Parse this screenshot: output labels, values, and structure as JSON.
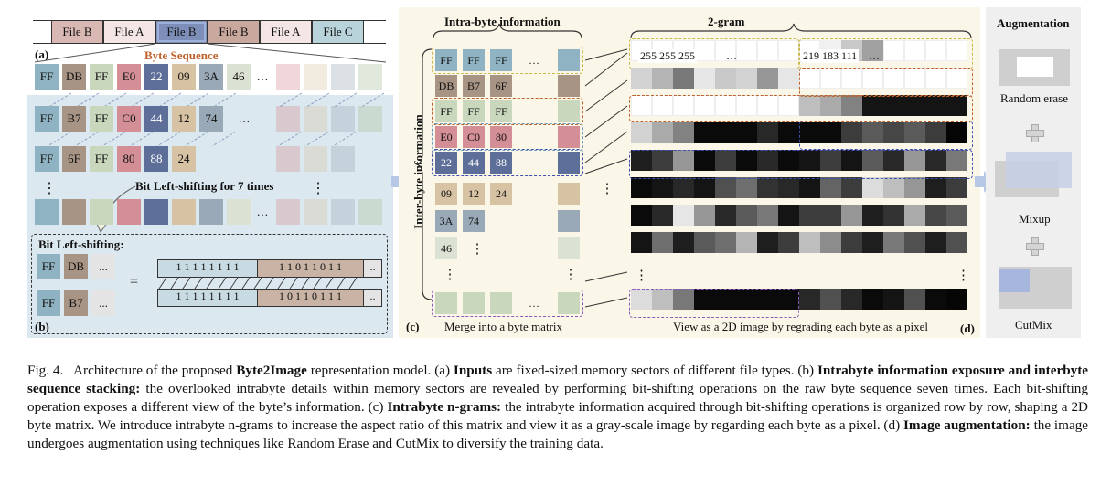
{
  "panel_a": {
    "label": "(a)",
    "files": [
      "File B",
      "File A",
      "File B",
      "File B",
      "File A",
      "File C"
    ],
    "byte_sequence_title": "Byte Sequence",
    "byte_rows": [
      [
        "FF",
        "DB",
        "FF",
        "E0",
        "22",
        "09",
        "3A",
        "46",
        "…"
      ],
      [
        "FF",
        "B7",
        "FF",
        "C0",
        "44",
        "12",
        "74",
        "…"
      ],
      [
        "FF",
        "6F",
        "FF",
        "80",
        "88",
        "24"
      ]
    ],
    "vdots": "⋮",
    "shift_label": "Bit Left-shifting for 7 times",
    "ellipsis": "…"
  },
  "panel_b": {
    "label": "(b)",
    "title": "Bit Left-shifting:",
    "row1": {
      "b1": "FF",
      "b2": "DB",
      "b3": "...",
      "bits_left": "1 1 1 1 1 1 1 1",
      "bits_right": "1 1 0 1 1 0 1 1"
    },
    "row2": {
      "b1": "FF",
      "b2": "B7",
      "b3": "...",
      "bits_left": "1 1 1 1 1 1 1 1",
      "bits_right": "1 0 1 1 0 1 1 1"
    },
    "equals": "="
  },
  "panel_c": {
    "label": "(c)",
    "intra_title": "Intra-byte information",
    "inter_title": "Inter-byte information",
    "gram_title": "2-gram",
    "matrix_rows": [
      [
        "FF",
        "FF",
        "FF"
      ],
      [
        "DB",
        "B7",
        "6F"
      ],
      [
        "FF",
        "FF",
        "FF"
      ],
      [
        "E0",
        "C0",
        "80"
      ],
      [
        "22",
        "44",
        "88"
      ],
      [
        "09",
        "12",
        "24"
      ],
      [
        "3A",
        "74"
      ],
      [
        "46"
      ]
    ],
    "pixel_text_left": "255 255 255",
    "pixel_text_right": "219 183 111",
    "merge_caption": "Merge into a byte matrix",
    "view_caption": "View as a 2D image by regrading each byte as a pixel",
    "ellipsis": "…",
    "vdots": "⋮"
  },
  "panel_d": {
    "label": "(d)",
    "title": "Augmentation",
    "items": [
      "Random erase",
      "Mixup",
      "CutMix"
    ]
  },
  "caption": {
    "fig": "Fig. 4.",
    "intro": "Architecture of the proposed",
    "model": "Byte2Image",
    "intro2": "representation model. (a)",
    "inputs": "Inputs",
    "inputs_text": "are fixed-sized memory sectors of different file types. (b)",
    "intrabyte_exposure": "Intrabyte information exposure and interbyte sequence stacking:",
    "exposure_text": "the overlooked intrabyte details within memory sectors are revealed by performing bit-shifting operations on the raw byte sequence seven times. Each bit-shifting operation exposes a different view of the byte’s information. (c)",
    "ngrams": "Intrabyte n-grams:",
    "ngrams_text": "the intrabyte information acquired through bit-shifting operations is organized row by row, shaping a 2D byte matrix. We introduce intrabyte n-grams to increase the aspect ratio of this matrix and view it as a gray-scale image by regarding each byte as a pixel. (d)",
    "augmentation": "Image augmentation:",
    "augmentation_text": "the image undergoes augmentation using techniques like Random Erase and CutMix to diversify the training data."
  },
  "colors": {
    "FF": "#8fb3c2",
    "DB": "#a89484",
    "B7": "#a89484",
    "6F": "#a89484",
    "E0": "#d48f96",
    "C0": "#d48f96",
    "80": "#d48f96",
    "22": "#5d6e98",
    "44": "#5d6e98",
    "88": "#5d6e98",
    "09": "#d7c3a3",
    "12": "#d7c3a3",
    "24": "#d7c3a3",
    "3A": "#9aa9b8",
    "74": "#9aa9b8",
    "46": "#dce2d3",
    "FF_green": "#c9d8bd",
    "panel_ab_bg": "#dce8ef",
    "panel_c_bg": "#fbf7e8",
    "panel_d_bg": "#efefef",
    "byte_seq_title": "#c0622c"
  }
}
